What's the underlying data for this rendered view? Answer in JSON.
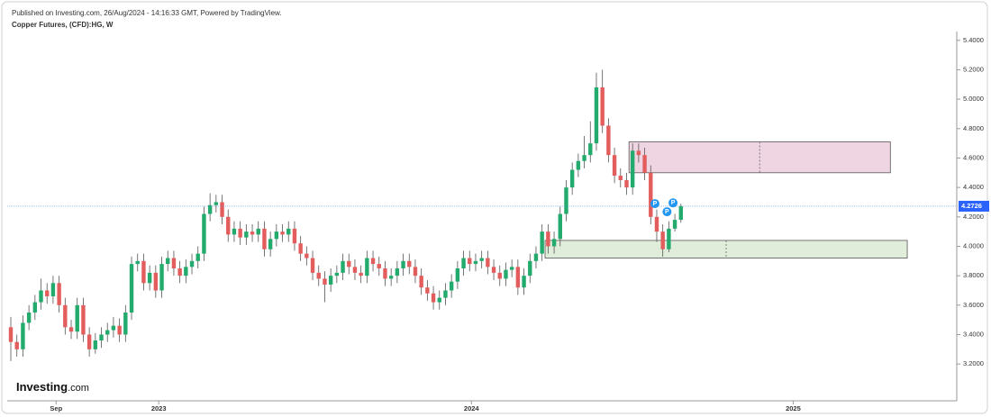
{
  "chart_data": {
    "type": "candlestick",
    "published": "Published on Investing.com, 26/Aug/2024 - 14:16:33 GMT, Powered by TradingView.",
    "title": "Copper Futures, (CFD):HG, W",
    "logo": {
      "brand": "Investing",
      "suffix": ".com"
    },
    "up_color": "#22ab6c",
    "down_color": "#e35d5d",
    "ylim": [
      2.95,
      5.46
    ],
    "yticks": [
      {
        "value": 3.2,
        "label": "3.2000"
      },
      {
        "value": 3.4,
        "label": "3.4000"
      },
      {
        "value": 3.6,
        "label": "3.6000"
      },
      {
        "value": 3.8,
        "label": "3.8000"
      },
      {
        "value": 4.0,
        "label": "4.0000"
      },
      {
        "value": 4.2,
        "label": "4.2000"
      },
      {
        "value": 4.4,
        "label": "4.4000"
      },
      {
        "value": 4.6,
        "label": "4.6000"
      },
      {
        "value": 4.8,
        "label": "4.8000"
      },
      {
        "value": 5.0,
        "label": "5.0000"
      },
      {
        "value": 5.2,
        "label": "5.2000"
      },
      {
        "value": 5.4,
        "label": "5.4000"
      }
    ],
    "xlim": [
      -0.6,
      156.7
    ],
    "xticks": [
      {
        "value": 7.5,
        "label": "Sep"
      },
      {
        "value": 24.5,
        "label": "2023"
      },
      {
        "value": 76.3,
        "label": "2024"
      },
      {
        "value": 129.6,
        "label": "2025"
      }
    ],
    "last_price": 4.2726,
    "ohlc": [
      [
        3.45,
        3.52,
        3.22,
        3.35
      ],
      [
        3.35,
        3.4,
        3.25,
        3.3
      ],
      [
        3.3,
        3.53,
        3.25,
        3.48
      ],
      [
        3.48,
        3.6,
        3.43,
        3.55
      ],
      [
        3.55,
        3.67,
        3.5,
        3.62
      ],
      [
        3.62,
        3.78,
        3.57,
        3.7
      ],
      [
        3.7,
        3.75,
        3.61,
        3.66
      ],
      [
        3.66,
        3.8,
        3.61,
        3.75
      ],
      [
        3.75,
        3.8,
        3.55,
        3.6
      ],
      [
        3.6,
        3.65,
        3.4,
        3.45
      ],
      [
        3.45,
        3.5,
        3.37,
        3.42
      ],
      [
        3.42,
        3.65,
        3.37,
        3.6
      ],
      [
        3.6,
        3.65,
        3.35,
        3.4
      ],
      [
        3.4,
        3.45,
        3.25,
        3.3
      ],
      [
        3.3,
        3.41,
        3.27,
        3.36
      ],
      [
        3.36,
        3.45,
        3.31,
        3.4
      ],
      [
        3.4,
        3.48,
        3.35,
        3.43
      ],
      [
        3.43,
        3.52,
        3.38,
        3.46
      ],
      [
        3.46,
        3.51,
        3.35,
        3.4
      ],
      [
        3.4,
        3.6,
        3.35,
        3.55
      ],
      [
        3.55,
        3.93,
        3.5,
        3.88
      ],
      [
        3.88,
        3.95,
        3.83,
        3.9
      ],
      [
        3.9,
        3.95,
        3.7,
        3.75
      ],
      [
        3.75,
        3.87,
        3.7,
        3.82
      ],
      [
        3.82,
        3.87,
        3.65,
        3.7
      ],
      [
        3.7,
        3.93,
        3.65,
        3.88
      ],
      [
        3.88,
        3.97,
        3.83,
        3.92
      ],
      [
        3.92,
        3.97,
        3.8,
        3.85
      ],
      [
        3.85,
        3.9,
        3.75,
        3.8
      ],
      [
        3.8,
        3.91,
        3.75,
        3.86
      ],
      [
        3.86,
        3.95,
        3.81,
        3.9
      ],
      [
        3.9,
        4.0,
        3.85,
        3.95
      ],
      [
        3.95,
        4.27,
        3.9,
        4.22
      ],
      [
        4.22,
        4.36,
        4.17,
        4.28
      ],
      [
        4.28,
        4.35,
        4.23,
        4.3
      ],
      [
        4.3,
        4.35,
        4.15,
        4.2
      ],
      [
        4.2,
        4.25,
        4.03,
        4.08
      ],
      [
        4.08,
        4.17,
        4.03,
        4.12
      ],
      [
        4.12,
        4.17,
        4.01,
        4.06
      ],
      [
        4.06,
        4.15,
        4.01,
        4.1
      ],
      [
        4.1,
        4.15,
        4.03,
        4.08
      ],
      [
        4.08,
        4.17,
        4.03,
        4.12
      ],
      [
        4.12,
        4.17,
        3.93,
        3.98
      ],
      [
        3.98,
        4.1,
        3.93,
        4.05
      ],
      [
        4.05,
        4.15,
        4.0,
        4.1
      ],
      [
        4.1,
        4.15,
        4.03,
        4.08
      ],
      [
        4.08,
        4.17,
        4.03,
        4.12
      ],
      [
        4.12,
        4.17,
        3.97,
        4.02
      ],
      [
        4.02,
        4.07,
        3.9,
        3.95
      ],
      [
        3.95,
        4.0,
        3.87,
        3.92
      ],
      [
        3.92,
        3.97,
        3.77,
        3.82
      ],
      [
        3.82,
        3.87,
        3.73,
        3.78
      ],
      [
        3.78,
        3.83,
        3.62,
        3.74
      ],
      [
        3.74,
        3.85,
        3.69,
        3.8
      ],
      [
        3.8,
        3.87,
        3.75,
        3.82
      ],
      [
        3.82,
        3.95,
        3.77,
        3.9
      ],
      [
        3.9,
        3.95,
        3.81,
        3.86
      ],
      [
        3.86,
        3.91,
        3.77,
        3.82
      ],
      [
        3.82,
        3.87,
        3.75,
        3.8
      ],
      [
        3.8,
        3.97,
        3.75,
        3.92
      ],
      [
        3.92,
        3.97,
        3.83,
        3.88
      ],
      [
        3.88,
        3.93,
        3.8,
        3.85
      ],
      [
        3.85,
        3.9,
        3.73,
        3.78
      ],
      [
        3.78,
        3.85,
        3.73,
        3.8
      ],
      [
        3.8,
        3.9,
        3.75,
        3.85
      ],
      [
        3.85,
        3.95,
        3.8,
        3.9
      ],
      [
        3.9,
        3.95,
        3.81,
        3.86
      ],
      [
        3.86,
        3.91,
        3.75,
        3.8
      ],
      [
        3.8,
        3.85,
        3.67,
        3.72
      ],
      [
        3.72,
        3.77,
        3.63,
        3.68
      ],
      [
        3.68,
        3.73,
        3.57,
        3.62
      ],
      [
        3.62,
        3.7,
        3.57,
        3.65
      ],
      [
        3.65,
        3.75,
        3.6,
        3.7
      ],
      [
        3.7,
        3.81,
        3.65,
        3.76
      ],
      [
        3.76,
        3.9,
        3.71,
        3.85
      ],
      [
        3.85,
        3.97,
        3.8,
        3.92
      ],
      [
        3.92,
        3.97,
        3.83,
        3.88
      ],
      [
        3.88,
        3.95,
        3.83,
        3.9
      ],
      [
        3.9,
        3.97,
        3.85,
        3.92
      ],
      [
        3.92,
        3.97,
        3.81,
        3.86
      ],
      [
        3.86,
        3.91,
        3.77,
        3.82
      ],
      [
        3.82,
        3.87,
        3.73,
        3.78
      ],
      [
        3.78,
        3.89,
        3.73,
        3.84
      ],
      [
        3.84,
        3.91,
        3.79,
        3.86
      ],
      [
        3.86,
        3.91,
        3.67,
        3.72
      ],
      [
        3.72,
        3.85,
        3.67,
        3.8
      ],
      [
        3.8,
        3.95,
        3.75,
        3.9
      ],
      [
        3.9,
        4.0,
        3.85,
        3.95
      ],
      [
        3.95,
        4.15,
        3.9,
        4.1
      ],
      [
        4.1,
        4.15,
        3.95,
        4.0
      ],
      [
        4.0,
        4.1,
        3.95,
        4.05
      ],
      [
        4.05,
        4.27,
        4.0,
        4.22
      ],
      [
        4.22,
        4.45,
        4.17,
        4.4
      ],
      [
        4.4,
        4.57,
        4.35,
        4.52
      ],
      [
        4.52,
        4.63,
        4.47,
        4.58
      ],
      [
        4.58,
        4.75,
        4.53,
        4.62
      ],
      [
        4.62,
        4.85,
        4.57,
        4.7
      ],
      [
        4.7,
        5.18,
        4.65,
        5.08
      ],
      [
        5.08,
        5.2,
        4.77,
        4.82
      ],
      [
        4.82,
        4.87,
        4.57,
        4.62
      ],
      [
        4.62,
        4.67,
        4.43,
        4.48
      ],
      [
        4.48,
        4.53,
        4.4,
        4.45
      ],
      [
        4.45,
        4.5,
        4.35,
        4.4
      ],
      [
        4.4,
        4.7,
        4.35,
        4.65
      ],
      [
        4.65,
        4.7,
        4.57,
        4.62
      ],
      [
        4.62,
        4.67,
        4.45,
        4.5
      ],
      [
        4.5,
        4.55,
        4.15,
        4.2
      ],
      [
        4.2,
        4.25,
        4.03,
        4.1
      ],
      [
        4.1,
        4.15,
        3.93,
        3.98
      ],
      [
        3.98,
        4.17,
        3.96,
        4.12
      ],
      [
        4.12,
        4.22,
        4.1,
        4.18
      ],
      [
        4.18,
        4.29,
        4.16,
        4.2726
      ]
    ],
    "zones": [
      {
        "x0": 102.4,
        "x1": 145.7,
        "low": 4.5,
        "high": 4.71,
        "color": "#e7c3d4"
      },
      {
        "x0": 88.5,
        "x1": 148.5,
        "low": 3.92,
        "high": 4.04,
        "color": "#d4e6cc"
      }
    ],
    "markers": [
      {
        "label": "P",
        "x": 106.7,
        "y": 4.29
      },
      {
        "label": "P",
        "x": 108.7,
        "y": 4.235
      },
      {
        "label": "P",
        "x": 109.7,
        "y": 4.295
      }
    ],
    "marker_color": "#2196f3"
  }
}
